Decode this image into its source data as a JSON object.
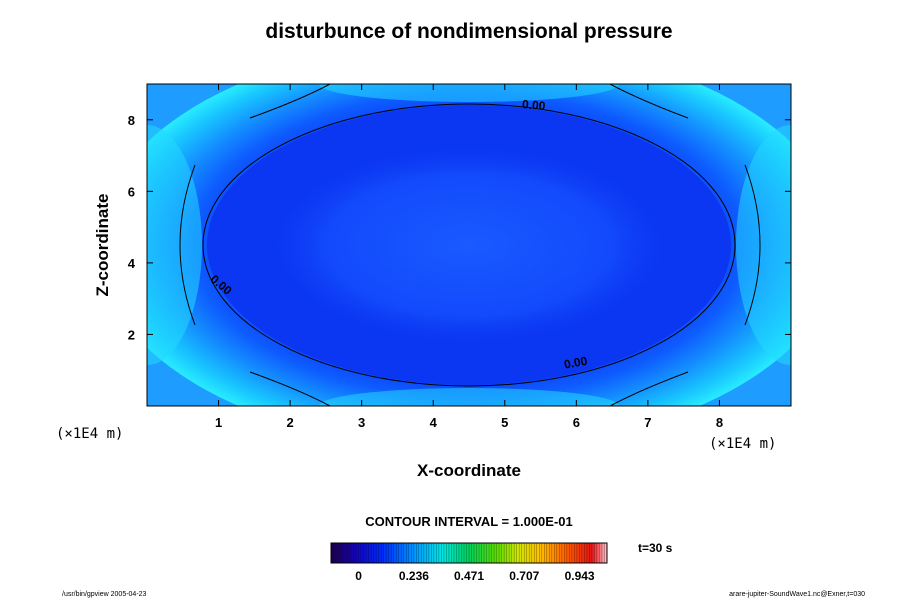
{
  "chart_data": {
    "type": "contour",
    "title": "disturbunce of nondimensional pressure",
    "xlabel": "X-coordinate",
    "ylabel": "Z-coordinate",
    "x_unit": "(×1E4 m)",
    "y_unit": "(×1E4 m)",
    "xlim": [
      0,
      9
    ],
    "ylim": [
      0,
      9
    ],
    "x_ticks": [
      "1",
      "2",
      "3",
      "4",
      "5",
      "6",
      "7",
      "8"
    ],
    "y_ticks": [
      "2",
      "4",
      "6",
      "8"
    ],
    "grid": false,
    "contour_interval_text": "CONTOUR INTERVAL = 1.000E-01",
    "time_text": "t=30 s",
    "colorbar_ticks": [
      "0",
      "0.236",
      "0.471",
      "0.707",
      "0.943"
    ],
    "colorbar_range": [
      -0.118,
      1.06
    ],
    "contour_labels": [
      {
        "text": "0.00",
        "x": 5.4,
        "z": 8.3
      },
      {
        "text": "0.00",
        "x": 1.0,
        "z": 3.3
      },
      {
        "text": "0.00",
        "x": 6.0,
        "z": 1.1
      }
    ],
    "field": {
      "description_center": "domain centre (4.5, 4.5) is the minimum, near the bottom of the colour scale",
      "center": [
        4.5,
        4.5
      ],
      "min_value": 0.0,
      "edge_max_value": 0.35
    }
  },
  "footer": {
    "left": "/usr/bin/gpview 2005-04-23",
    "right": "arare-jupiter-SoundWave1.nc@Exner,t=030"
  }
}
